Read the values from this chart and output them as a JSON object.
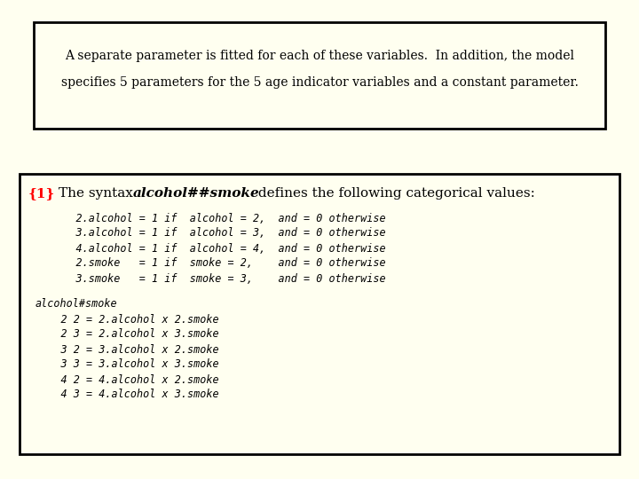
{
  "page_bg": "#fffff0",
  "box1_bg": "#fffff0",
  "box2_bg": "#fffff0",
  "box1_text_line1": "A separate parameter is fitted for each of these variables.  In addition, the model",
  "box1_text_line2": "specifies 5 parameters for the 5 age indicator variables and a constant parameter.",
  "code_lines": [
    "    2.alcohol = 1 if  alcohol = 2,  and = 0 otherwise",
    "    3.alcohol = 1 if  alcohol = 3,  and = 0 otherwise",
    "    4.alcohol = 1 if  alcohol = 4,  and = 0 otherwise",
    "    2.smoke   = 1 if  smoke = 2,    and = 0 otherwise",
    "    3.smoke   = 1 if  smoke = 3,    and = 0 otherwise"
  ],
  "code_lines2": [
    "alcohol#smoke",
    "    2 2 = 2.alcohol x 2.smoke",
    "    2 3 = 2.alcohol x 3.smoke",
    "    3 2 = 3.alcohol x 2.smoke",
    "    3 3 = 3.alcohol x 3.smoke",
    "    4 2 = 4.alcohol x 2.smoke",
    "    4 3 = 4.alcohol x 3.smoke"
  ]
}
